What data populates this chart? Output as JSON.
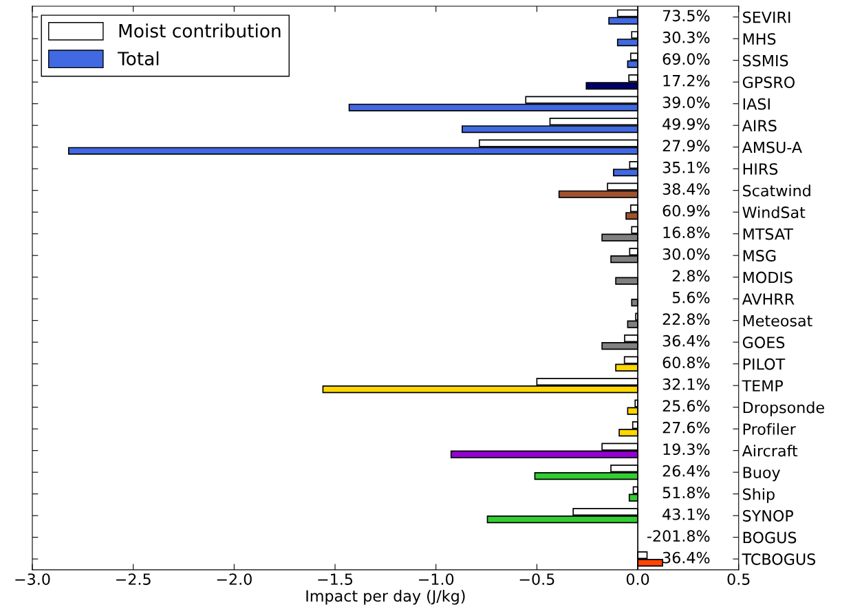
{
  "chart_data": {
    "type": "bar",
    "orientation": "horizontal",
    "xlabel": "Impact per day (J/kg)",
    "categories": [
      "SEVIRI",
      "MHS",
      "SSMIS",
      "GPSRO",
      "IASI",
      "AIRS",
      "AMSU-A",
      "HIRS",
      "Scatwind",
      "WindSat",
      "MTSAT",
      "MSG",
      "MODIS",
      "AVHRR",
      "Meteosat",
      "GOES",
      "PILOT",
      "TEMP",
      "Dropsonde",
      "Profiler",
      "Aircraft",
      "Buoy",
      "Ship",
      "SYNOP",
      "BOGUS",
      "TCBOGUS"
    ],
    "series": [
      {
        "name": "Moist contribution",
        "color": "#ffffff",
        "values": [
          -0.1,
          -0.03,
          -0.035,
          -0.044,
          -0.555,
          -0.435,
          -0.785,
          -0.04,
          -0.15,
          -0.035,
          -0.03,
          -0.04,
          null,
          null,
          -0.01,
          -0.065,
          -0.066,
          -0.5,
          -0.013,
          -0.025,
          -0.177,
          -0.133,
          -0.022,
          -0.32,
          null,
          0.046
        ]
      },
      {
        "name": "Total",
        "color": "#4169e1",
        "values": [
          -0.143,
          -0.1,
          -0.05,
          -0.255,
          -1.43,
          -0.87,
          -2.82,
          -0.12,
          -0.39,
          -0.058,
          -0.177,
          -0.133,
          -0.109,
          -0.03,
          -0.05,
          -0.177,
          -0.109,
          -1.56,
          -0.05,
          -0.092,
          -0.925,
          -0.51,
          -0.042,
          -0.745,
          null,
          0.123
        ],
        "colors": [
          "#4169e1",
          "#4169e1",
          "#4169e1",
          "#000066",
          "#4169e1",
          "#4169e1",
          "#4169e1",
          "#4169e1",
          "#a0522d",
          "#a0522d",
          "#808080",
          "#808080",
          "#808080",
          "#808080",
          "#808080",
          "#808080",
          "#ffd700",
          "#ffd700",
          "#ffd700",
          "#ffd700",
          "#9400d3",
          "#32cd32",
          "#32cd32",
          "#32cd32",
          "#808080",
          "#ff4500"
        ]
      }
    ],
    "annotations": [
      "73.5%",
      "30.3%",
      "69.0%",
      "17.2%",
      "39.0%",
      "49.9%",
      "27.9%",
      "35.1%",
      "38.4%",
      "60.9%",
      "16.8%",
      "30.0%",
      "2.8%",
      "5.6%",
      "22.8%",
      "36.4%",
      "60.8%",
      "32.1%",
      "25.6%",
      "27.6%",
      "19.3%",
      "26.4%",
      "51.8%",
      "43.1%",
      "-201.8%",
      "36.4%"
    ],
    "xlim": [
      -3.0,
      0.5
    ],
    "xticks": [
      {
        "value": -3.0,
        "label": "−3.0"
      },
      {
        "value": -2.5,
        "label": "−2.5"
      },
      {
        "value": -2.0,
        "label": "−2.0"
      },
      {
        "value": -1.5,
        "label": "−1.5"
      },
      {
        "value": -1.0,
        "label": "−1.0"
      },
      {
        "value": -0.5,
        "label": "−0.5"
      },
      {
        "value": 0.0,
        "label": "0.0"
      },
      {
        "value": 0.5,
        "label": "0.5"
      }
    ],
    "ref_lines": [
      {
        "axis": "x",
        "value": 0.0,
        "color": "#000000"
      }
    ],
    "grid": false,
    "legend": "top left"
  }
}
